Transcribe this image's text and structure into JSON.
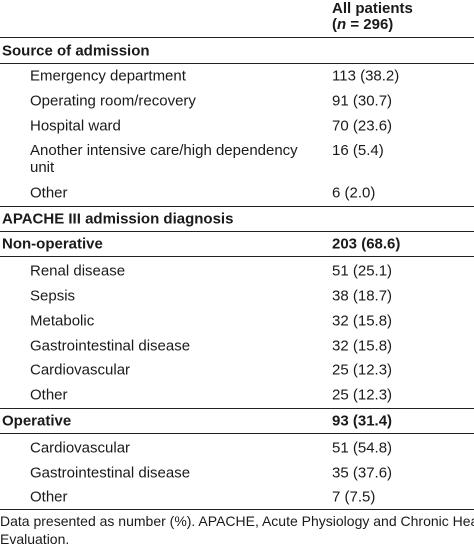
{
  "header": {
    "line1": "All patients",
    "n_label": "n",
    "line2_rest": " = 296)"
  },
  "source_section": {
    "title": "Source of admission",
    "rows": [
      {
        "label": "Emergency department",
        "value": "113 (38.2)"
      },
      {
        "label": "Operating room/recovery",
        "value": "91 (30.7)"
      },
      {
        "label": "Hospital ward",
        "value": "70 (23.6)"
      },
      {
        "label": "Another intensive care/high dependency unit",
        "value": "16 (5.4)"
      },
      {
        "label": "Other",
        "value": "6 (2.0)"
      }
    ]
  },
  "apache_section": {
    "title": "APACHE III admission diagnosis"
  },
  "nonoperative_section": {
    "title": "Non-operative",
    "value": "203 (68.6)",
    "rows": [
      {
        "label": "Renal disease",
        "value": "51 (25.1)"
      },
      {
        "label": "Sepsis",
        "value": "38 (18.7)"
      },
      {
        "label": "Metabolic",
        "value": "32 (15.8)"
      },
      {
        "label": "Gastrointestinal disease",
        "value": "32 (15.8)"
      },
      {
        "label": "Cardiovascular",
        "value": "25 (12.3)"
      },
      {
        "label": "Other",
        "value": "25 (12.3)"
      }
    ]
  },
  "operative_section": {
    "title": "Operative",
    "value": "93 (31.4)",
    "rows": [
      {
        "label": "Cardiovascular",
        "value": "51 (54.8)"
      },
      {
        "label": "Gastrointestinal disease",
        "value": "35 (37.6)"
      },
      {
        "label": "Other",
        "value": "7 (7.5)"
      }
    ]
  },
  "footnote": {
    "line1": "Data presented as number (%). APACHE, Acute Physiology and Chronic Health",
    "line2": "Evaluation."
  }
}
